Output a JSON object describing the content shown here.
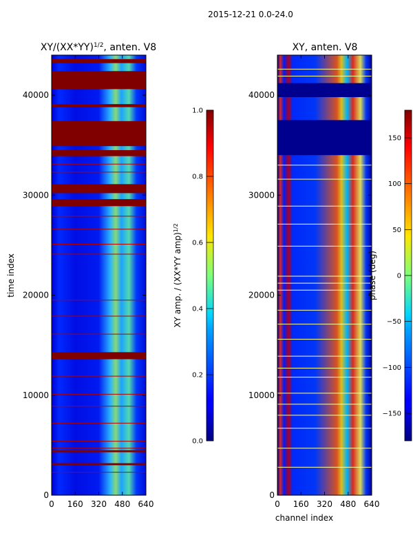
{
  "figure": {
    "suptitle": "2015-12-21 0.0-24.0"
  },
  "chart_data": [
    {
      "type": "heatmap",
      "title_text": "XY/(XX*YY)",
      "title_exponent": "1/2",
      "title_suffix": ", anten. V8",
      "xlabel": "",
      "ylabel": "time index",
      "xlim": [
        0,
        640
      ],
      "ylim": [
        0,
        44000
      ],
      "xticks": [
        "0",
        "160",
        "320",
        "480",
        "640"
      ],
      "yticks": [
        "0",
        "10000",
        "20000",
        "30000",
        "40000"
      ],
      "colormap": "jet",
      "colorbar": {
        "label_text": "XY amp. / (XX*YY amp)",
        "label_exponent": "1/2",
        "range": [
          0.0,
          1.0
        ],
        "ticks": [
          "0.0",
          "0.2",
          "0.4",
          "0.6",
          "0.8",
          "1.0"
        ]
      },
      "background_value": 0.12,
      "high_band_value": 1.0,
      "high_bands": [
        [
          3000,
          3200
        ],
        [
          4300,
          4500
        ],
        [
          13600,
          14300
        ],
        [
          28900,
          29600
        ],
        [
          30200,
          31100
        ],
        [
          33900,
          34500
        ],
        [
          34900,
          37400
        ],
        [
          38800,
          39100
        ],
        [
          40600,
          42400
        ],
        [
          43200,
          43600
        ]
      ],
      "thin_lines": [
        2300,
        4700,
        5400,
        7200,
        8900,
        10100,
        11900,
        16100,
        17900,
        19500,
        24100,
        25100,
        26600,
        27900,
        32300,
        33100
      ]
    },
    {
      "type": "heatmap",
      "title_text": "XY, anten. V8",
      "xlabel": "channel index",
      "ylabel": "",
      "xlim": [
        0,
        640
      ],
      "ylim": [
        0,
        44000
      ],
      "xticks": [
        "0",
        "160",
        "320",
        "480",
        "640"
      ],
      "yticks": [
        "0",
        "10000",
        "20000",
        "30000",
        "40000"
      ],
      "colormap": "jet",
      "colorbar": {
        "label_text": "phase (deg)",
        "range": [
          -180,
          180
        ],
        "ticks": [
          "−150",
          "−100",
          "−50",
          "0",
          "50",
          "100",
          "150"
        ]
      },
      "background_value": -150,
      "dark_bands": [
        [
          34000,
          37500
        ],
        [
          39800,
          41200
        ]
      ],
      "bright_lines": [
        2800,
        4700,
        6700,
        8000,
        9100,
        10200,
        11800,
        12700,
        13900,
        15600,
        17100,
        18500,
        20500,
        21200,
        21900,
        24900,
        27100,
        28900,
        31600,
        33000,
        41900,
        42600
      ]
    }
  ]
}
